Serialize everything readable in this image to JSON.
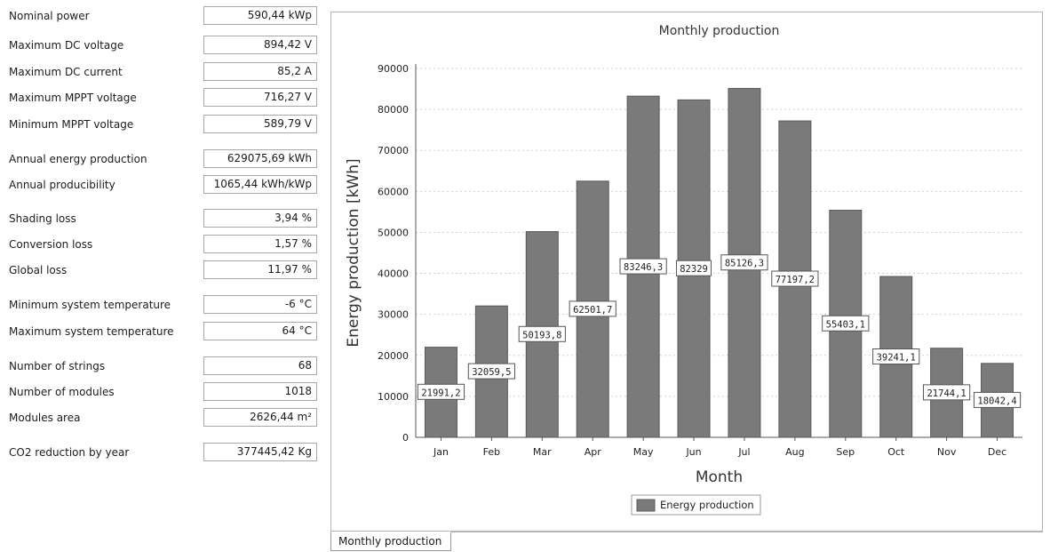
{
  "parameters": [
    {
      "label": "Nominal power",
      "value": "590,44 kWp"
    },
    {
      "label": "Maximum DC voltage",
      "value": "894,42 V"
    },
    {
      "label": "Maximum DC current",
      "value": "85,2 A"
    },
    {
      "label": "Maximum MPPT voltage",
      "value": "716,27 V"
    },
    {
      "label": "Minimum MPPT voltage",
      "value": "589,79 V"
    },
    {
      "label": "Annual energy production",
      "value": "629075,69 kWh"
    },
    {
      "label": "Annual producibility",
      "value": "1065,44 kWh/kWp"
    },
    {
      "label": "Shading loss",
      "value": "3,94 %"
    },
    {
      "label": "Conversion loss",
      "value": "1,57 %"
    },
    {
      "label": "Global loss",
      "value": "11,97 %"
    },
    {
      "label": "Minimum system temperature",
      "value": "-6 °C"
    },
    {
      "label": "Maximum system temperature",
      "value": "64 °C"
    },
    {
      "label": "Number of strings",
      "value": "68"
    },
    {
      "label": "Number of modules",
      "value": "1018"
    },
    {
      "label": "Modules area",
      "value": "2626,44 m²"
    },
    {
      "label": "CO2 reduction by year",
      "value": "377445,42 Kg"
    }
  ],
  "tab": {
    "label": "Monthly production"
  },
  "colors": {
    "bar": "#7a7a7a",
    "bar_edge": "#5a5a5a",
    "grid": "#d0d0d0"
  },
  "chart_data": {
    "type": "bar",
    "title": "Monthly production",
    "xlabel": "Month",
    "ylabel": "Energy production [kWh]",
    "categories": [
      "Jan",
      "Feb",
      "Mar",
      "Apr",
      "May",
      "Jun",
      "Jul",
      "Aug",
      "Sep",
      "Oct",
      "Nov",
      "Dec"
    ],
    "series": [
      {
        "name": "Energy production",
        "values": [
          21991.2,
          32059.5,
          50193.8,
          62501.7,
          83246.3,
          82329,
          85126.3,
          77197.2,
          55403.1,
          39241.1,
          21744.1,
          18042.4
        ],
        "data_labels": [
          "21991,2",
          "32059,5",
          "50193,8",
          "62501,7",
          "83246,3",
          "82329",
          "85126,3",
          "77197,2",
          "55403,1",
          "39241,1",
          "21744,1",
          "18042,4"
        ]
      }
    ],
    "yticks": [
      0,
      10000,
      20000,
      30000,
      40000,
      50000,
      60000,
      70000,
      80000,
      90000
    ],
    "ylim": [
      0,
      90000
    ],
    "grid": true,
    "legend_position": "bottom-center"
  }
}
